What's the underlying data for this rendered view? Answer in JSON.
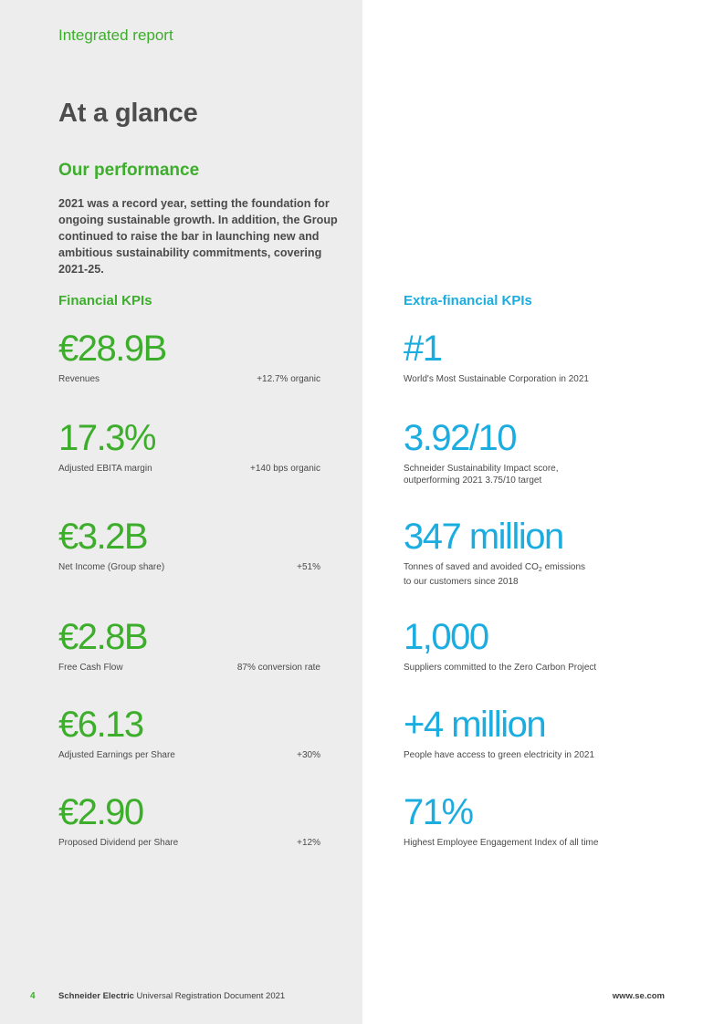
{
  "header": {
    "section_label": "Integrated report"
  },
  "title": "At a glance",
  "subheading": "Our performance",
  "intro": "2021 was a record year, setting the foundation for ongoing sustainable growth. In addition, the Group continued to raise the bar in launching new and ambitious sustainability commitments, covering 2021-25.",
  "financial": {
    "heading": "Financial KPIs",
    "kpis": [
      {
        "value": "€28.9B",
        "label": "Revenues",
        "change": "+12.7% organic"
      },
      {
        "value": "17.3%",
        "label": "Adjusted EBITA margin",
        "change": "+140 bps organic"
      },
      {
        "value": "€3.2B",
        "label": "Net Income (Group share)",
        "change": "+51%"
      },
      {
        "value": "€2.8B",
        "label": "Free Cash Flow",
        "change": "87% conversion rate"
      },
      {
        "value": "€6.13",
        "label": "Adjusted Earnings per Share",
        "change": "+30%"
      },
      {
        "value": "€2.90",
        "label": "Proposed Dividend per Share",
        "change": "+12%"
      }
    ]
  },
  "extra_financial": {
    "heading": "Extra-financial KPIs",
    "kpis": [
      {
        "value": "#1",
        "desc_line1": "World's Most Sustainable Corporation in 2021"
      },
      {
        "value": "3.92/10",
        "desc_line1": "Schneider Sustainability Impact score,",
        "desc_line2": "outperforming 2021 3.75/10 target"
      },
      {
        "value": "347 million",
        "desc_pre": "Tonnes of saved and avoided CO",
        "desc_sub": "2",
        "desc_post": " emissions",
        "desc_line2": "to our customers since 2018"
      },
      {
        "value": "1,000",
        "desc_line1": "Suppliers committed to the Zero Carbon Project"
      },
      {
        "value": "+4 million",
        "desc_line1": "People have access to green electricity in 2021"
      },
      {
        "value": "71%",
        "desc_line1": "Highest Employee Engagement Index of all time"
      }
    ]
  },
  "footer": {
    "page_number": "4",
    "brand": "Schneider Electric",
    "doc_title": "Universal Registration Document 2021",
    "url": "www.se.com"
  },
  "colors": {
    "green": "#3dae2b",
    "blue": "#1bace0",
    "panel_grey": "#ededed"
  }
}
